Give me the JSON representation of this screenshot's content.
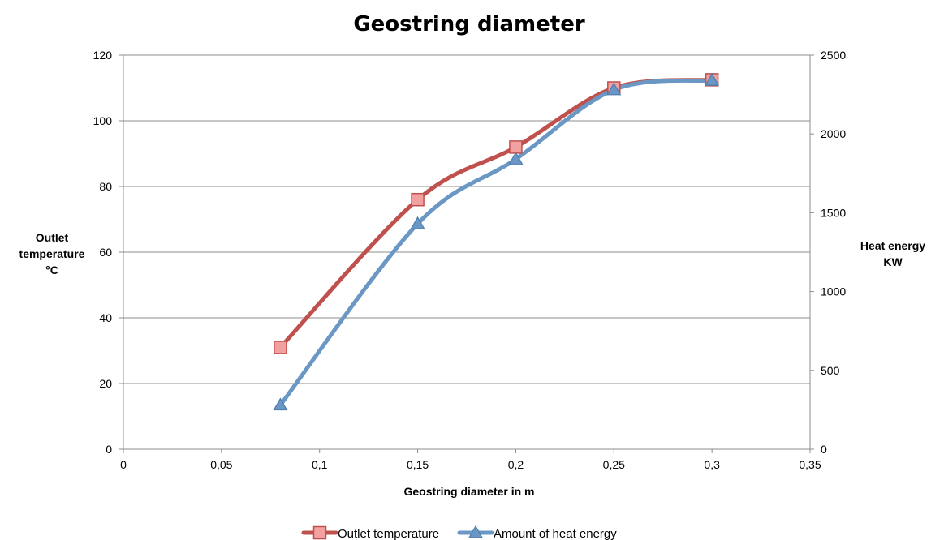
{
  "chart_data": {
    "type": "line",
    "title": "Geostring diameter",
    "xlabel": "Geostring diameter in m",
    "ylabel_lines": [
      "Outlet",
      "temperature",
      "°C"
    ],
    "y2label_lines": [
      "Heat energy",
      "KW"
    ],
    "xlim": [
      0,
      0.35
    ],
    "ylim": [
      0,
      120
    ],
    "y2lim": [
      0,
      2500
    ],
    "x_ticks": [
      "0",
      "0,05",
      "0,1",
      "0,15",
      "0,2",
      "0,25",
      "0,3",
      "0,35"
    ],
    "x_tick_values": [
      0,
      0.05,
      0.1,
      0.15,
      0.2,
      0.25,
      0.3,
      0.35
    ],
    "y_ticks": [
      "0",
      "20",
      "40",
      "60",
      "80",
      "100",
      "120"
    ],
    "y_tick_values": [
      0,
      20,
      40,
      60,
      80,
      100,
      120
    ],
    "y2_ticks": [
      "0",
      "500",
      "1000",
      "1500",
      "2000",
      "2500"
    ],
    "y2_tick_values": [
      0,
      500,
      1000,
      1500,
      2000,
      2500
    ],
    "grid": true,
    "legend_position": "bottom",
    "x": [
      0.08,
      0.15,
      0.2,
      0.25,
      0.3
    ],
    "series": [
      {
        "name": "Outlet temperature",
        "axis": "left",
        "marker": "square",
        "color": "#c0504d",
        "marker_fill": "#f2a0a0",
        "values": [
          31,
          76,
          92,
          110,
          112.5
        ]
      },
      {
        "name": "Amount of heat energy",
        "axis": "right",
        "marker": "triangle",
        "color": "#6a97c4",
        "marker_fill": "#6a97c4",
        "values": [
          280,
          1430,
          1840,
          2280,
          2340
        ]
      }
    ]
  }
}
